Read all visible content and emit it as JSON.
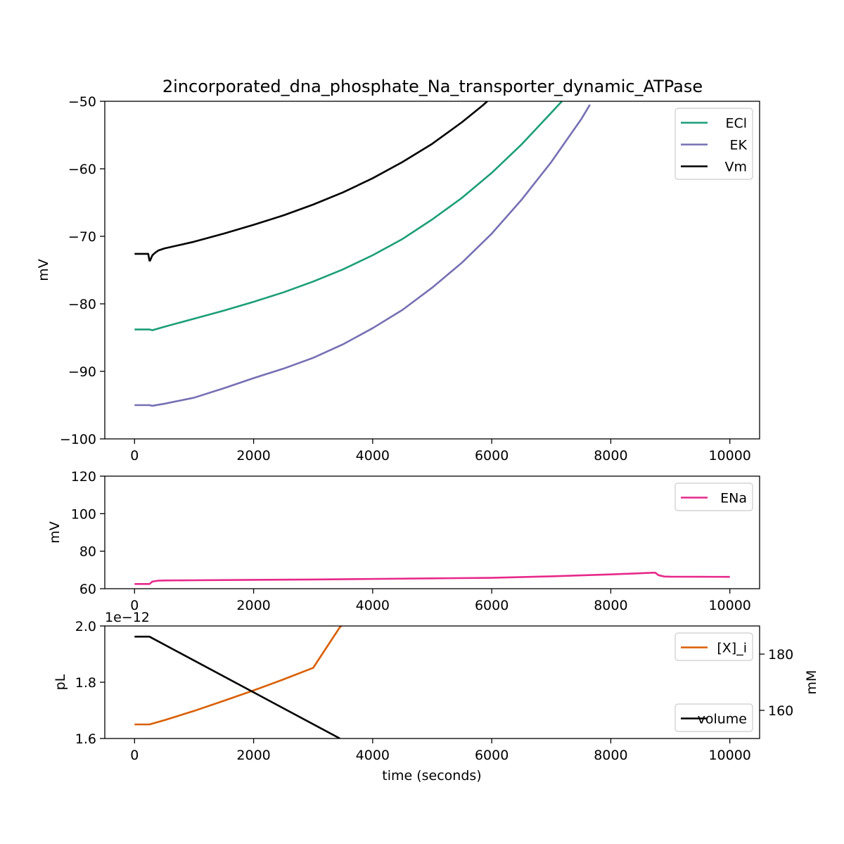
{
  "chart_data": [
    {
      "type": "line",
      "title": "2incorporated_dna_phosphate_Na_transporter_dynamic_ATPase",
      "xlabel": "",
      "ylabel": "mV",
      "xlim": [
        -500,
        10500
      ],
      "ylim": [
        -100,
        -50
      ],
      "xticks": [
        0,
        2000,
        4000,
        6000,
        8000,
        10000
      ],
      "xtick_labels": [
        "0",
        "2000",
        "4000",
        "6000",
        "8000",
        "10000"
      ],
      "yticks": [
        -100,
        -90,
        -80,
        -70,
        -60,
        -50
      ],
      "ytick_labels": [
        "−100",
        "−90",
        "−80",
        "−70",
        "−60",
        "−50"
      ],
      "grid": false,
      "legend": "upper right",
      "series": [
        {
          "name": "ECl",
          "color": "#1b9e77",
          "x": [
            0,
            250,
            300,
            500,
            1000,
            1500,
            2000,
            2500,
            3000,
            3500,
            4000,
            4500,
            5000,
            5500,
            6000,
            6500,
            7000,
            7200
          ],
          "y": [
            -83.8,
            -83.8,
            -83.9,
            -83.4,
            -82.2,
            -81.0,
            -79.7,
            -78.3,
            -76.7,
            -74.9,
            -72.8,
            -70.4,
            -67.5,
            -64.3,
            -60.6,
            -56.4,
            -51.7,
            -49.8
          ]
        },
        {
          "name": "EK",
          "color": "#7570b3",
          "x": [
            0,
            250,
            300,
            500,
            1000,
            1500,
            2000,
            2500,
            3000,
            3500,
            4000,
            4500,
            5000,
            5500,
            6000,
            6500,
            7000,
            7500,
            7650
          ],
          "y": [
            -95.0,
            -95.0,
            -95.1,
            -94.8,
            -93.9,
            -92.5,
            -91.0,
            -89.6,
            -88.0,
            -86.0,
            -83.6,
            -80.9,
            -77.6,
            -73.9,
            -69.6,
            -64.6,
            -59.0,
            -52.7,
            -50.5
          ]
        },
        {
          "name": "Vm",
          "color": "#000000",
          "x": [
            0,
            230,
            250,
            260,
            300,
            350,
            400,
            500,
            1000,
            1500,
            2000,
            2500,
            3000,
            3500,
            4000,
            4500,
            5000,
            5500,
            5850,
            5950
          ],
          "y": [
            -72.6,
            -72.6,
            -73.6,
            -73.6,
            -72.8,
            -72.4,
            -72.1,
            -71.8,
            -70.8,
            -69.6,
            -68.3,
            -66.9,
            -65.3,
            -63.5,
            -61.4,
            -59.0,
            -56.3,
            -53.1,
            -50.6,
            -49.8
          ]
        }
      ]
    },
    {
      "type": "line",
      "title": "",
      "xlabel": "",
      "ylabel": "mV",
      "xlim": [
        -500,
        10500
      ],
      "ylim": [
        60,
        120
      ],
      "xticks": [
        0,
        2000,
        4000,
        6000,
        8000,
        10000
      ],
      "xtick_labels": [
        "0",
        "2000",
        "4000",
        "6000",
        "8000",
        "10000"
      ],
      "yticks": [
        60,
        80,
        100,
        120
      ],
      "ytick_labels": [
        "60",
        "80",
        "100",
        "120"
      ],
      "grid": false,
      "legend": "upper right",
      "series": [
        {
          "name": "ENa",
          "color": "#e7298a",
          "x": [
            0,
            250,
            300,
            400,
            500,
            1000,
            2000,
            3000,
            4000,
            5000,
            6000,
            7000,
            8000,
            8700,
            8750,
            8800,
            8900,
            9000,
            10000
          ],
          "y": [
            62.5,
            62.5,
            63.8,
            64.3,
            64.4,
            64.5,
            64.7,
            64.9,
            65.2,
            65.5,
            65.8,
            66.6,
            67.6,
            68.5,
            68.5,
            67.2,
            66.5,
            66.4,
            66.3
          ]
        }
      ]
    },
    {
      "type": "line",
      "title": "",
      "xlabel": "time (seconds)",
      "ylabel": "pL",
      "ylabel_right": "mM",
      "offset_text": "1e−12",
      "xlim": [
        -500,
        10500
      ],
      "ylim": [
        1.6,
        2.0
      ],
      "ylim_right": [
        150,
        190
      ],
      "xticks": [
        0,
        2000,
        4000,
        6000,
        8000,
        10000
      ],
      "xtick_labels": [
        "0",
        "2000",
        "4000",
        "6000",
        "8000",
        "10000"
      ],
      "yticks": [
        1.6,
        1.8,
        2.0
      ],
      "ytick_labels": [
        "1.6",
        "1.8",
        "2.0"
      ],
      "yticks_right": [
        160,
        180
      ],
      "ytick_labels_right": [
        "160",
        "180"
      ],
      "grid": false,
      "series": [
        {
          "name": "[X]_i",
          "color": "#d95f02",
          "axis": "right",
          "legend": "upper right",
          "x": [
            0,
            250,
            500,
            1000,
            1500,
            2000,
            2500,
            3000,
            3450,
            3500
          ],
          "y": [
            155.0,
            155.0,
            156.5,
            159.8,
            163.4,
            167.1,
            171.0,
            175.1,
            189.6,
            190.4
          ]
        },
        {
          "name": "volume",
          "color": "#000000",
          "axis": "left",
          "legend": "lower right",
          "x": [
            0,
            250,
            3450
          ],
          "y": [
            1.962,
            1.962,
            1.6
          ]
        }
      ]
    }
  ]
}
